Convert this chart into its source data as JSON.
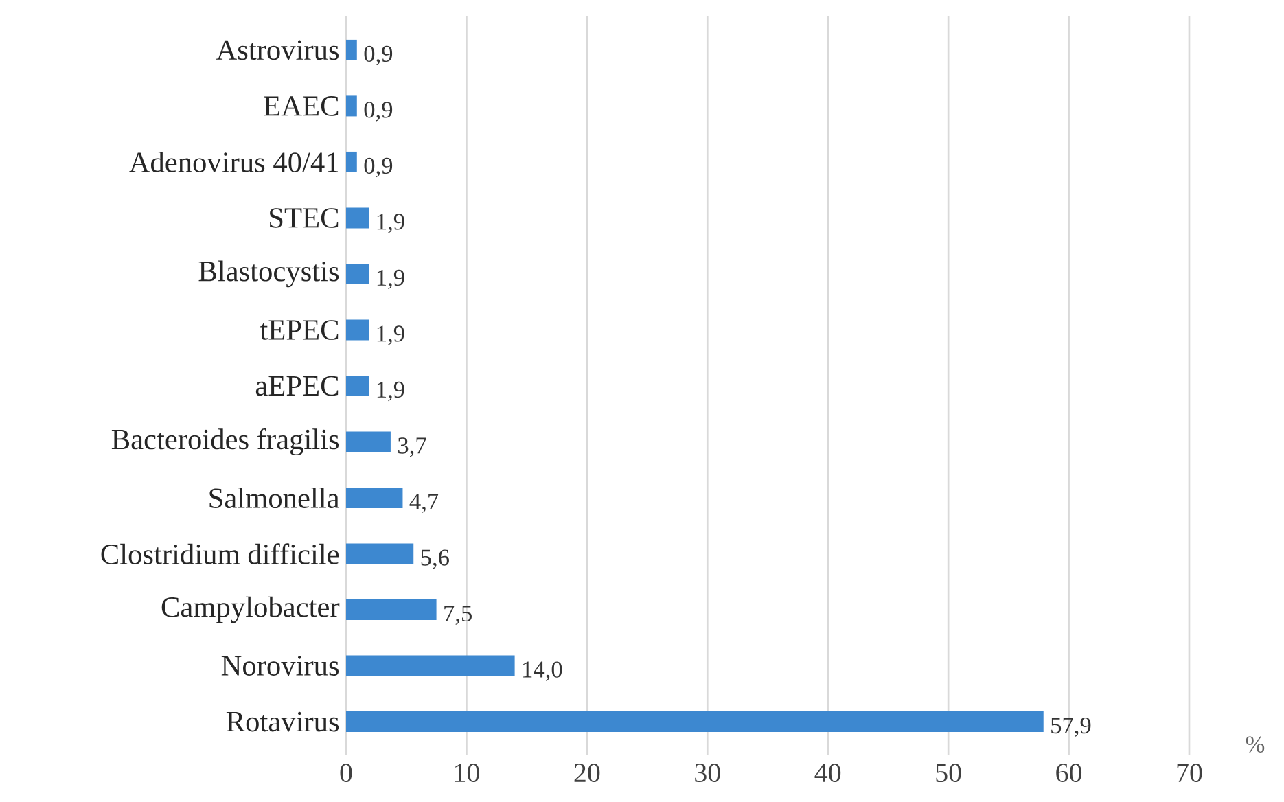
{
  "chart_data": {
    "type": "bar",
    "orientation": "horizontal",
    "categories": [
      "Astrovirus",
      "EAEC",
      "Adenovirus 40/41",
      "STEC",
      "Blastocystis",
      "tEPEC",
      "aEPEC",
      "Bacteroides fragilis",
      "Salmonella",
      "Clostridium difficile",
      "Campylobacter",
      "Norovirus",
      "Rotavirus"
    ],
    "values": [
      0.9,
      0.9,
      0.9,
      1.9,
      1.9,
      1.9,
      1.9,
      3.7,
      4.7,
      5.6,
      7.5,
      14.0,
      57.9
    ],
    "value_labels": [
      "0,9",
      "0,9",
      "0,9",
      "1,9",
      "1,9",
      "1,9",
      "1,9",
      "3,7",
      "4,7",
      "5,6",
      "7,5",
      "14,0",
      "57,9"
    ],
    "color": "#3d88d0",
    "xlabel": "%",
    "xlim": [
      0,
      70
    ],
    "xticks": [
      0,
      10,
      20,
      30,
      40,
      50,
      60,
      70
    ],
    "grid": "x"
  }
}
